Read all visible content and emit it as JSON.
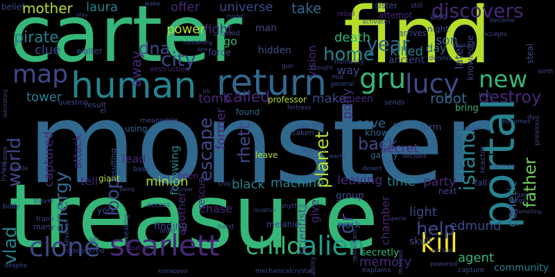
{
  "palette": [
    "#440154",
    "#482878",
    "#3e4989",
    "#31688e",
    "#26828e",
    "#1f9e89",
    "#35b779",
    "#6ece58",
    "#b5de2b",
    "#fde725"
  ],
  "words": [
    {
      "text": "monster",
      "color": "#31688e"
    },
    {
      "text": "treasure",
      "color": "#35b779"
    },
    {
      "text": "carter",
      "color": "#35b779"
    },
    {
      "text": "find",
      "color": "#b5de2b"
    },
    {
      "text": "return",
      "color": "#31688e"
    },
    {
      "text": "human",
      "color": "#26828e"
    },
    {
      "text": "portal",
      "color": "#26828e"
    },
    {
      "text": "gru",
      "color": "#35b779"
    },
    {
      "text": "lucy",
      "color": "#3e4989"
    },
    {
      "text": "clone",
      "color": "#3e4989"
    },
    {
      "text": "scarlett",
      "color": "#482878"
    },
    {
      "text": "alien",
      "color": "#1f9e89"
    },
    {
      "text": "child",
      "color": "#35b779"
    },
    {
      "text": "kill",
      "color": "#fde725"
    },
    {
      "text": "map",
      "color": "#3e4989"
    },
    {
      "text": "new",
      "color": "#35b779"
    },
    {
      "text": "discovers",
      "color": "#482878"
    },
    {
      "text": "world",
      "color": "#3e4989"
    },
    {
      "text": "city",
      "color": "#3e4989"
    },
    {
      "text": "dna",
      "color": "#3e4989"
    },
    {
      "text": "home",
      "color": "#26828e"
    },
    {
      "text": "year",
      "color": "#31688e"
    },
    {
      "text": "escape",
      "color": "#3e4989"
    },
    {
      "text": "island",
      "color": "#26828e"
    },
    {
      "text": "father",
      "color": "#6ece58"
    },
    {
      "text": "back",
      "color": "#3e4989"
    },
    {
      "text": "planet",
      "color": "#b5de2b"
    },
    {
      "text": "rhett",
      "color": "#3e4989"
    },
    {
      "text": "loop",
      "color": "#3e4989"
    },
    {
      "text": "energy",
      "color": "#31688e"
    },
    {
      "text": "vlad",
      "color": "#26828e"
    },
    {
      "text": "dr",
      "color": "#3e4989"
    },
    {
      "text": "help",
      "color": "#3e4989"
    },
    {
      "text": "destroy",
      "color": "#482878"
    },
    {
      "text": "tomb",
      "color": "#482878"
    },
    {
      "text": "called",
      "color": "#482878"
    },
    {
      "text": "memory",
      "color": "#482878"
    },
    {
      "text": "pirate",
      "color": "#26828e"
    },
    {
      "text": "mother",
      "color": "#b5de2b"
    },
    {
      "text": "laura",
      "color": "#26828e"
    },
    {
      "text": "offer",
      "color": "#482878"
    },
    {
      "text": "universe",
      "color": "#3e4989"
    },
    {
      "text": "take",
      "color": "#31688e"
    },
    {
      "text": "son",
      "color": "#31688e"
    },
    {
      "text": "clue",
      "color": "#3e4989"
    },
    {
      "text": "power",
      "color": "#b5de2b"
    },
    {
      "text": "fight",
      "color": "#482878"
    },
    {
      "text": "go",
      "color": "#35b779"
    },
    {
      "text": "away",
      "color": "#482878"
    },
    {
      "text": "death",
      "color": "#35b779"
    },
    {
      "text": "vision",
      "color": "#482878"
    },
    {
      "text": "ancient",
      "color": "#3e4989"
    },
    {
      "text": "killed",
      "color": "#26828e"
    },
    {
      "text": "day",
      "color": "#31688e"
    },
    {
      "text": "later",
      "color": "#3e4989"
    },
    {
      "text": "knowledge",
      "color": "#3e4989"
    },
    {
      "text": "genetic",
      "color": "#31688e"
    },
    {
      "text": "tower",
      "color": "#26828e"
    },
    {
      "text": "make",
      "color": "#3e4989"
    },
    {
      "text": "robot",
      "color": "#31688e"
    },
    {
      "text": "queen",
      "color": "#482878"
    },
    {
      "text": "pony",
      "color": "#482878"
    },
    {
      "text": "save",
      "color": "#31688e"
    },
    {
      "text": "secret",
      "color": "#482878"
    },
    {
      "text": "former",
      "color": "#482878"
    },
    {
      "text": "minion",
      "color": "#b5de2b"
    },
    {
      "text": "black",
      "color": "#26828e"
    },
    {
      "text": "machine",
      "color": "#26828e"
    },
    {
      "text": "leaving",
      "color": "#482878"
    },
    {
      "text": "time",
      "color": "#26828e"
    },
    {
      "text": "party",
      "color": "#482878"
    },
    {
      "text": "captured",
      "color": "#482878"
    },
    {
      "text": "attack",
      "color": "#482878"
    },
    {
      "text": "tell",
      "color": "#482878"
    },
    {
      "text": "lead",
      "color": "#482878"
    },
    {
      "text": "following",
      "color": "#26828e"
    },
    {
      "text": "another",
      "color": "#482878"
    },
    {
      "text": "rescue",
      "color": "#482878"
    },
    {
      "text": "edmund",
      "color": "#3e4989"
    },
    {
      "text": "agent",
      "color": "#35b779"
    },
    {
      "text": "chamber",
      "color": "#482878"
    },
    {
      "text": "light",
      "color": "#3e4989"
    },
    {
      "text": "scientist",
      "color": "#3e4989"
    },
    {
      "text": "give",
      "color": "#482878"
    },
    {
      "text": "work",
      "color": "#31688e"
    },
    {
      "text": "skull",
      "color": "#3e4989"
    },
    {
      "text": "community",
      "color": "#26828e"
    },
    {
      "text": "secretly",
      "color": "#35b779"
    },
    {
      "text": "chase",
      "color": "#482878"
    },
    {
      "text": "finding",
      "color": "#3e4989"
    },
    {
      "text": "hidden",
      "color": "#3e4989"
    },
    {
      "text": "man",
      "color": "#3e4989"
    },
    {
      "text": "force",
      "color": "#3e4989"
    },
    {
      "text": "way",
      "color": "#3e4989"
    },
    {
      "text": "group",
      "color": "#3e4989"
    },
    {
      "text": "know",
      "color": "#31688e"
    },
    {
      "text": "form",
      "color": "#3e4989"
    },
    {
      "text": "professor",
      "color": "#b5de2b"
    },
    {
      "text": "found",
      "color": "#31688e"
    },
    {
      "text": "bring",
      "color": "#35b779"
    },
    {
      "text": "giant",
      "color": "#b5de2b"
    },
    {
      "text": "leave",
      "color": "#b5de2b"
    },
    {
      "text": "using",
      "color": "#31688e"
    },
    {
      "text": "galaxy",
      "color": "#31688e"
    },
    {
      "text": "next",
      "color": "#3e4989"
    },
    {
      "text": "fall",
      "color": "#3e4989"
    },
    {
      "text": "arrives",
      "color": "#3e4989"
    },
    {
      "text": "night",
      "color": "#3e4989"
    },
    {
      "text": "sister",
      "color": "#3e4989"
    },
    {
      "text": "attempt",
      "color": "#482878"
    },
    {
      "text": "also",
      "color": "#3e4989"
    },
    {
      "text": "walter",
      "color": "#3e4989"
    },
    {
      "text": "belief",
      "color": "#3e4989"
    },
    {
      "text": "rebel",
      "color": "#482878"
    },
    {
      "text": "still",
      "color": "#3e4989"
    },
    {
      "text": "wake",
      "color": "#3e4989"
    },
    {
      "text": "dennis",
      "color": "#3e4989"
    },
    {
      "text": "meanwhile",
      "color": "#3e4989"
    },
    {
      "text": "result",
      "color": "#3e4989"
    },
    {
      "text": "question",
      "color": "#3e4989"
    },
    {
      "text": "el",
      "color": "#3e4989"
    },
    {
      "text": "sends",
      "color": "#3e4989"
    },
    {
      "text": "ruin",
      "color": "#3e4989"
    },
    {
      "text": "life",
      "color": "#3e4989"
    },
    {
      "text": "taken",
      "color": "#3e4989"
    },
    {
      "text": "york",
      "color": "#3e4989"
    },
    {
      "text": "frank",
      "color": "#3e4989"
    },
    {
      "text": "many",
      "color": "#3e4989"
    },
    {
      "text": "base",
      "color": "#3e4989"
    },
    {
      "text": "revealing",
      "color": "#3e4989"
    },
    {
      "text": "resulting",
      "color": "#3e4989"
    },
    {
      "text": "hand",
      "color": "#3e4989"
    },
    {
      "text": "melanie",
      "color": "#3e4989"
    },
    {
      "text": "open",
      "color": "#482878"
    },
    {
      "text": "access",
      "color": "#3e4989"
    },
    {
      "text": "travel",
      "color": "#3e4989"
    },
    {
      "text": "body",
      "color": "#3e4989"
    },
    {
      "text": "butler",
      "color": "#482878"
    },
    {
      "text": "discovered",
      "color": "#3e4989"
    },
    {
      "text": "kidnapped",
      "color": "#3e4989"
    },
    {
      "text": "mechanical",
      "color": "#3e4989"
    },
    {
      "text": "crystal",
      "color": "#3e4989"
    },
    {
      "text": "explains",
      "color": "#3e4989"
    },
    {
      "text": "restaurant",
      "color": "#3e4989"
    },
    {
      "text": "married",
      "color": "#3e4989"
    },
    {
      "text": "capture",
      "color": "#3e4989"
    },
    {
      "text": "several",
      "color": "#3e4989"
    },
    {
      "text": "desert",
      "color": "#3e4989"
    },
    {
      "text": "reactor",
      "color": "#3e4989"
    },
    {
      "text": "farmer",
      "color": "#3e4989"
    },
    {
      "text": "becomes",
      "color": "#3e4989"
    },
    {
      "text": "previous",
      "color": "#3e4989"
    },
    {
      "text": "steal",
      "color": "#3e4989"
    },
    {
      "text": "become",
      "color": "#3e4989"
    },
    {
      "text": "accepts",
      "color": "#3e4989"
    },
    {
      "text": "activates",
      "color": "#3e4989"
    },
    {
      "text": "humanity",
      "color": "#3e4989"
    },
    {
      "text": "general",
      "color": "#3e4989"
    },
    {
      "text": "mid",
      "color": "#3e4989"
    },
    {
      "text": "us",
      "color": "#3e4989"
    },
    {
      "text": "gun",
      "color": "#3e4989"
    },
    {
      "text": "thought",
      "color": "#3e4989"
    },
    {
      "text": "sex",
      "color": "#3e4989"
    },
    {
      "text": "blood",
      "color": "#3e4989"
    },
    {
      "text": "destruction",
      "color": "#482878"
    },
    {
      "text": "containing",
      "color": "#3e4989"
    },
    {
      "text": "model",
      "color": "#3e4989"
    },
    {
      "text": "hybrid",
      "color": "#3e4989"
    },
    {
      "text": "battle",
      "color": "#3e4989"
    },
    {
      "text": "created",
      "color": "#3e4989"
    },
    {
      "text": "fortress",
      "color": "#3e4989"
    },
    {
      "text": "ship",
      "color": "#3e4989"
    },
    {
      "text": "powered",
      "color": "#3e4989"
    },
    {
      "text": "pursue",
      "color": "#3e4989"
    },
    {
      "text": "test",
      "color": "#3e4989"
    },
    {
      "text": "meet",
      "color": "#3e4989"
    },
    {
      "text": "decides",
      "color": "#3e4989"
    },
    {
      "text": "gain",
      "color": "#3e4989"
    },
    {
      "text": "begin",
      "color": "#3e4989"
    },
    {
      "text": "birth",
      "color": "#3e4989"
    },
    {
      "text": "dy",
      "color": "#3e4989"
    },
    {
      "text": "specie",
      "color": "#3e4989"
    },
    {
      "text": "order",
      "color": "#3e4989"
    },
    {
      "text": "despite",
      "color": "#3e4989"
    },
    {
      "text": "get",
      "color": "#3e4989"
    },
    {
      "text": "being",
      "color": "#3e4989"
    },
    {
      "text": "discover",
      "color": "#3e4989"
    },
    {
      "text": "anything",
      "color": "#3e4989"
    },
    {
      "text": "location",
      "color": "#3e4989"
    },
    {
      "text": "actually",
      "color": "#3e4989"
    },
    {
      "text": "learns",
      "color": "#3e4989"
    },
    {
      "text": "war",
      "color": "#3e4989"
    },
    {
      "text": "appears",
      "color": "#3e4989"
    },
    {
      "text": "laboratory",
      "color": "#3e4989"
    },
    {
      "text": "stay",
      "color": "#3e4989"
    },
    {
      "text": "ability",
      "color": "#3e4989"
    },
    {
      "text": "facility",
      "color": "#3e4989"
    },
    {
      "text": "attempting",
      "color": "#3e4989"
    }
  ]
}
